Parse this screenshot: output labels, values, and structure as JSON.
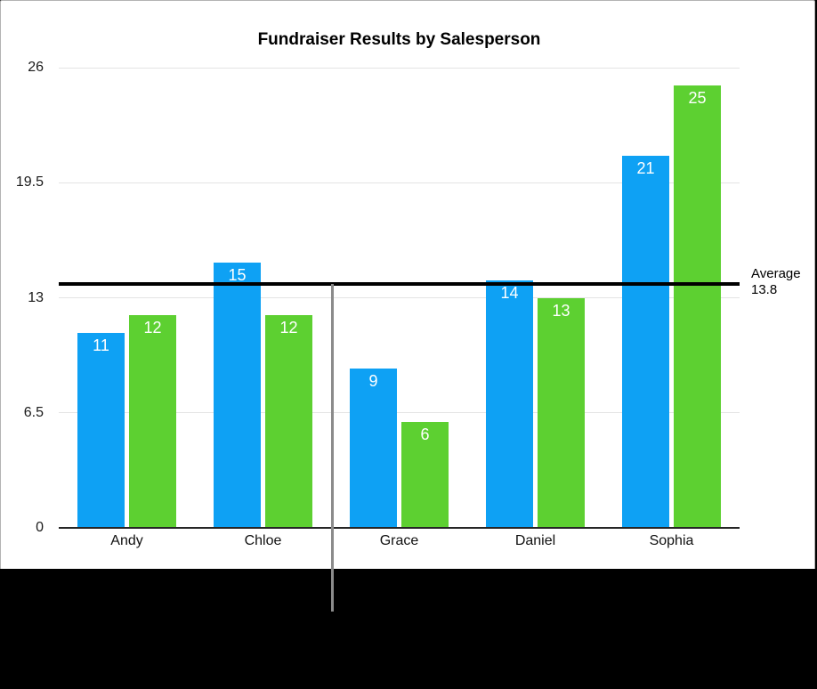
{
  "chart_data": {
    "type": "bar",
    "title": "Fundraiser Results by Salesperson",
    "categories": [
      "Andy",
      "Chloe",
      "Grace",
      "Daniel",
      "Sophia"
    ],
    "series": [
      {
        "name": "blue-series",
        "color": "#0EA1F4",
        "values": [
          11,
          15,
          9,
          14,
          21
        ]
      },
      {
        "name": "green-series",
        "color": "#5DD031",
        "values": [
          12,
          12,
          6,
          13,
          25
        ]
      }
    ],
    "y_ticks": [
      0,
      6.5,
      13,
      19.5,
      26
    ],
    "y_tick_labels": [
      "0",
      "6.5",
      "13",
      "19.5",
      "26"
    ],
    "ylim": [
      0,
      26
    ],
    "grid": true,
    "legend": "none",
    "value_labels": "inside-top",
    "average_line": {
      "value": 13.8,
      "label": [
        "Average",
        "13.8"
      ],
      "color": "#000000"
    }
  },
  "annotations": {
    "callout_pointer_color": "#8b8b8b"
  },
  "colors": {
    "panel_background": "#ffffff",
    "outside_background": "#000000",
    "panel_border": "#b3b3b3",
    "gridline": "#e4e4e4",
    "axis_line": "#262626",
    "bar_value_text": "#ffffff",
    "tick_text": "#1a1a1a"
  }
}
